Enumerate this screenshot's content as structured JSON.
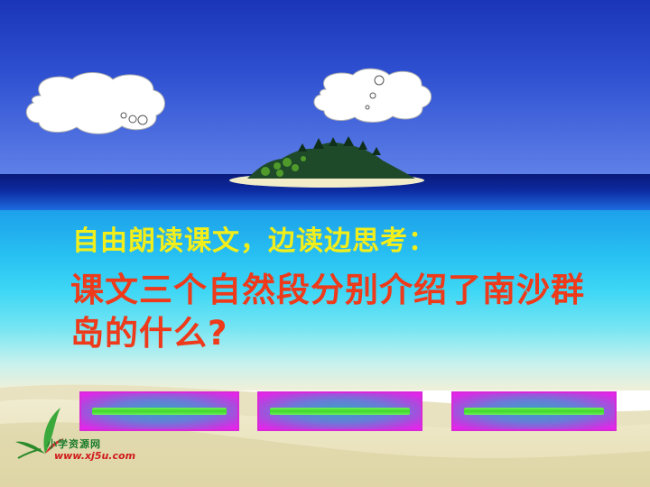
{
  "slide": {
    "prompt": "自由朗读课文，边读边思考：",
    "question": "课文三个自然段分别介绍了南沙群岛的什么?"
  },
  "answer_buttons": [
    {
      "id": "answer-1"
    },
    {
      "id": "answer-2"
    },
    {
      "id": "answer-3"
    }
  ],
  "logo": {
    "name": "小学资源网",
    "url": "www.xj5u.com"
  },
  "colors": {
    "prompt": "#f2ee1a",
    "question": "#ee3a1a",
    "button_border": "#d829d8",
    "button_bar": "#3fd82a"
  },
  "icons": [
    "cloud-icon",
    "island-icon",
    "logo-leaf-icon"
  ]
}
